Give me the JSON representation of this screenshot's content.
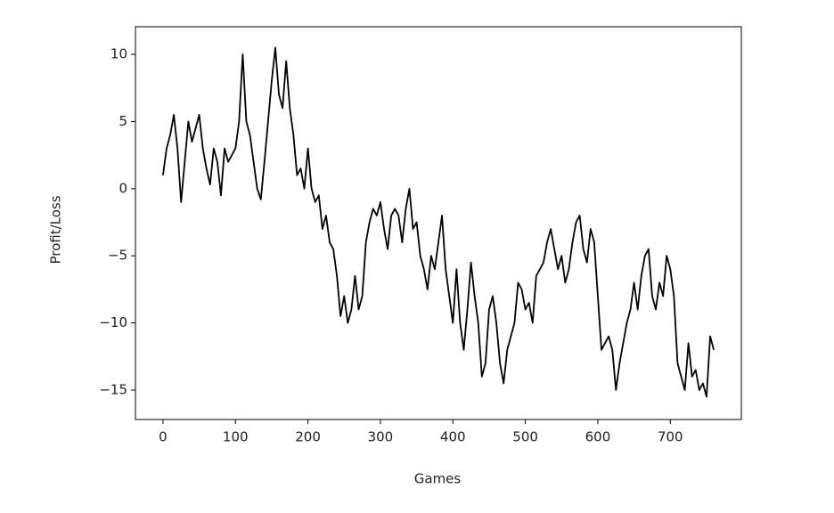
{
  "chart_data": {
    "type": "line",
    "xlabel": "Games",
    "ylabel": "Profit/Loss",
    "color": "#000000",
    "x": [
      0,
      5,
      10,
      15,
      20,
      25,
      30,
      35,
      40,
      45,
      50,
      55,
      60,
      65,
      70,
      75,
      80,
      85,
      90,
      95,
      100,
      105,
      110,
      115,
      120,
      125,
      130,
      135,
      140,
      145,
      150,
      155,
      160,
      165,
      170,
      175,
      180,
      185,
      190,
      195,
      200,
      205,
      210,
      215,
      220,
      225,
      230,
      235,
      240,
      245,
      250,
      255,
      260,
      265,
      270,
      275,
      280,
      285,
      290,
      295,
      300,
      305,
      310,
      315,
      320,
      325,
      330,
      335,
      340,
      345,
      350,
      355,
      360,
      365,
      370,
      375,
      380,
      385,
      390,
      395,
      400,
      405,
      410,
      415,
      420,
      425,
      430,
      435,
      440,
      445,
      450,
      455,
      460,
      465,
      470,
      475,
      480,
      485,
      490,
      495,
      500,
      505,
      510,
      515,
      520,
      525,
      530,
      535,
      540,
      545,
      550,
      555,
      560,
      565,
      570,
      575,
      580,
      585,
      590,
      595,
      600,
      605,
      610,
      615,
      620,
      625,
      630,
      635,
      640,
      645,
      650,
      655,
      660,
      665,
      670,
      675,
      680,
      685,
      690,
      695,
      700,
      705,
      710,
      715,
      720,
      725,
      730,
      735,
      740,
      745,
      750,
      755,
      760
    ],
    "values": [
      1,
      3,
      4,
      5.5,
      3,
      -1,
      2,
      5,
      3.5,
      4.5,
      5.5,
      3,
      1.5,
      0.3,
      3,
      2,
      -0.5,
      3,
      2,
      2.5,
      3,
      5,
      10,
      5,
      4,
      2,
      0,
      -0.8,
      2,
      5,
      8,
      10.5,
      7,
      6,
      9.5,
      6,
      4,
      1,
      1.5,
      0,
      3,
      0,
      -1,
      -0.5,
      -3,
      -2,
      -4,
      -4.5,
      -6.5,
      -9.5,
      -8,
      -10,
      -9,
      -6.5,
      -9,
      -8,
      -4,
      -2.5,
      -1.5,
      -2,
      -1,
      -3,
      -4.5,
      -2,
      -1.5,
      -2,
      -4,
      -1.5,
      0,
      -3,
      -2.5,
      -5,
      -6,
      -7.5,
      -5,
      -6,
      -4,
      -2,
      -6,
      -8,
      -10,
      -6,
      -10,
      -12,
      -9,
      -5.5,
      -8,
      -10,
      -14,
      -13,
      -9,
      -8,
      -10,
      -13,
      -14.5,
      -12,
      -11,
      -10,
      -7,
      -7.5,
      -9,
      -8.5,
      -10,
      -6.5,
      -6,
      -5.5,
      -4,
      -3,
      -4.5,
      -6,
      -5,
      -7,
      -6,
      -4,
      -2.5,
      -2,
      -4.5,
      -5.5,
      -3,
      -4,
      -8,
      -12,
      -11.5,
      -11,
      -12,
      -15,
      -13,
      -11.5,
      -10,
      -9,
      -7,
      -9,
      -6.5,
      -5,
      -4.5,
      -8,
      -9,
      -7,
      -8,
      -5,
      -6,
      -8,
      -13,
      -14,
      -15,
      -11.5,
      -14,
      -13.5,
      -15,
      -14.5,
      -15.5,
      -11,
      -12
    ],
    "xlim": [
      -38,
      798
    ],
    "ylim": [
      -17.19,
      12.06
    ],
    "xticks": [
      0,
      100,
      200,
      300,
      400,
      500,
      600,
      700
    ],
    "yticks": [
      {
        "value": -15,
        "label": "−15"
      },
      {
        "value": -10,
        "label": "−10"
      },
      {
        "value": -5,
        "label": "−5"
      },
      0,
      5,
      10
    ],
    "grid": false
  }
}
